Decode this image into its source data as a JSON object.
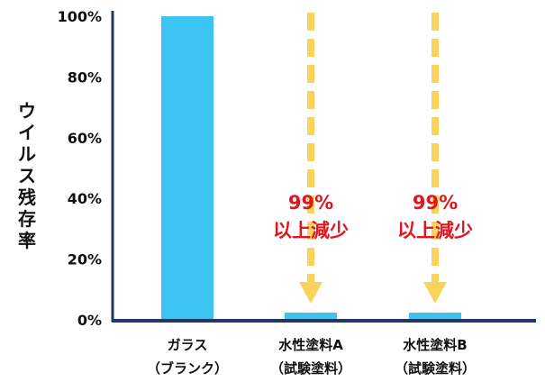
{
  "chart_data": {
    "type": "bar",
    "ylabel": "ウイルス残存率",
    "ylim": [
      0,
      100
    ],
    "yticks": [
      {
        "value": 0,
        "label": "0%"
      },
      {
        "value": 20,
        "label": "20%"
      },
      {
        "value": 40,
        "label": "40%"
      },
      {
        "value": 60,
        "label": "60%"
      },
      {
        "value": 80,
        "label": "80%"
      },
      {
        "value": 100,
        "label": "100%"
      }
    ],
    "categories": [
      {
        "line1": "ガラス",
        "line2": "（ブランク）"
      },
      {
        "line1": "水性塗料A",
        "line2": "（試験塗料）"
      },
      {
        "line1": "水性塗料B",
        "line2": "（試験塗料）"
      }
    ],
    "values": [
      100,
      1,
      1
    ],
    "annotations": [
      {
        "category_index": 1,
        "line1": "99%",
        "line2": "以上減少"
      },
      {
        "category_index": 2,
        "line1": "99%",
        "line2": "以上減少"
      }
    ],
    "grid": false,
    "legend": "none"
  },
  "colors": {
    "bar": "#3cc4f5",
    "arrow": "#fbd35c",
    "annotation_text": "#e0161e",
    "axis": "#1f3864"
  }
}
